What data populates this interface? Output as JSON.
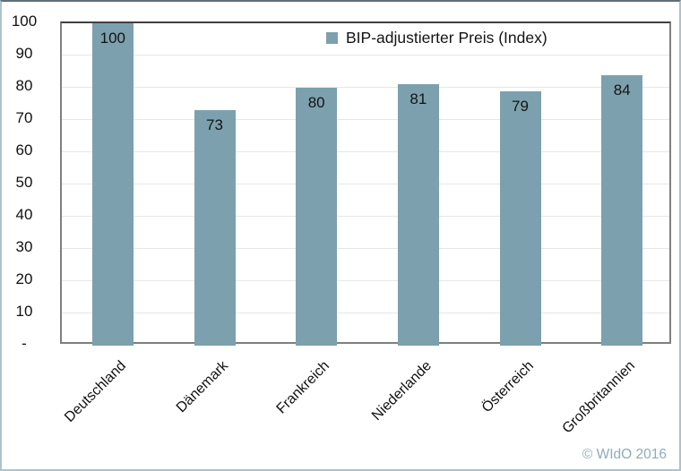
{
  "chart_data": {
    "type": "bar",
    "categories": [
      "Deutschland",
      "Dänemark",
      "Frankreich",
      "Niederlande",
      "Österreich",
      "Großbritannien"
    ],
    "values": [
      100,
      73,
      80,
      81,
      79,
      84
    ],
    "data_labels": [
      "100",
      "73",
      "80",
      "81",
      "79",
      "84"
    ],
    "series_name": "BIP-adjustierter Preis (Index)",
    "title": "",
    "xlabel": "",
    "ylabel": "",
    "ylim": [
      0,
      100
    ],
    "ytick_step": 10,
    "ytick_labels": [
      "100",
      "90",
      "80",
      "70",
      "60",
      "50",
      "40",
      "30",
      "20",
      "10",
      "-"
    ],
    "grid": true,
    "legend_position": "top-center",
    "bar_color": "#7CA0AE"
  },
  "legend": {
    "label": "BIP-adjustierter Preis (Index)"
  },
  "footer": {
    "copyright": "© WIdO 2016"
  },
  "colors": {
    "bar": "#7CA0AE",
    "gridline": "#e7e7e7",
    "plot_frame": "#7f7f7f",
    "plot_frame_top": "#3f3f3f",
    "outer_border": "#aec3cc",
    "copyright_text": "#8fabb9",
    "label_text": "#141414"
  }
}
